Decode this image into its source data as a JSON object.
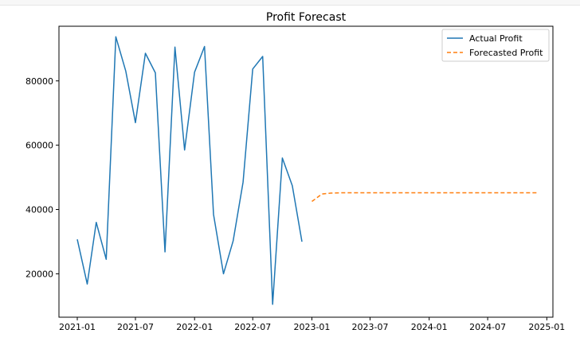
{
  "chart_data": {
    "type": "line",
    "title": "Profit Forecast",
    "xlabel": "",
    "ylabel": "",
    "x_axis": {
      "type": "date",
      "range": [
        "2020-11-05",
        "2025-01-20"
      ],
      "tick_labels": [
        "2021-01",
        "2021-07",
        "2022-01",
        "2022-07",
        "2023-01",
        "2023-07",
        "2024-01",
        "2024-07",
        "2025-01"
      ]
    },
    "y_axis": {
      "range": [
        6500,
        97000
      ],
      "ticks": [
        20000,
        40000,
        60000,
        80000
      ],
      "tick_labels": [
        "20000",
        "40000",
        "60000",
        "80000"
      ]
    },
    "grid": false,
    "legend": {
      "placement": "top-right"
    },
    "series": [
      {
        "name": "Actual Profit",
        "color": "#1f77b4",
        "style": "solid",
        "points": [
          {
            "x": "2021-01-01",
            "y": 30700
          },
          {
            "x": "2021-02-01",
            "y": 16800
          },
          {
            "x": "2021-03-01",
            "y": 36000
          },
          {
            "x": "2021-04-01",
            "y": 24500
          },
          {
            "x": "2021-05-01",
            "y": 93700
          },
          {
            "x": "2021-06-01",
            "y": 83000
          },
          {
            "x": "2021-07-01",
            "y": 67000
          },
          {
            "x": "2021-08-01",
            "y": 88600
          },
          {
            "x": "2021-09-01",
            "y": 82500
          },
          {
            "x": "2021-10-01",
            "y": 26800
          },
          {
            "x": "2021-11-01",
            "y": 90500
          },
          {
            "x": "2021-12-01",
            "y": 58500
          },
          {
            "x": "2022-01-01",
            "y": 82700
          },
          {
            "x": "2022-02-01",
            "y": 90700
          },
          {
            "x": "2022-03-01",
            "y": 38500
          },
          {
            "x": "2022-04-01",
            "y": 20000
          },
          {
            "x": "2022-05-01",
            "y": 30200
          },
          {
            "x": "2022-06-01",
            "y": 48500
          },
          {
            "x": "2022-07-01",
            "y": 83700
          },
          {
            "x": "2022-08-01",
            "y": 87600
          },
          {
            "x": "2022-09-01",
            "y": 10500
          },
          {
            "x": "2022-10-01",
            "y": 56000
          },
          {
            "x": "2022-11-01",
            "y": 47400
          },
          {
            "x": "2022-12-01",
            "y": 30000
          }
        ]
      },
      {
        "name": "Forecasted Profit",
        "color": "#ff7f0e",
        "style": "dashed",
        "points": [
          {
            "x": "2023-01-01",
            "y": 42500
          },
          {
            "x": "2023-02-01",
            "y": 44800
          },
          {
            "x": "2023-03-01",
            "y": 45100
          },
          {
            "x": "2023-04-01",
            "y": 45200
          },
          {
            "x": "2023-05-01",
            "y": 45200
          },
          {
            "x": "2023-06-01",
            "y": 45200
          },
          {
            "x": "2023-07-01",
            "y": 45200
          },
          {
            "x": "2023-08-01",
            "y": 45200
          },
          {
            "x": "2023-09-01",
            "y": 45200
          },
          {
            "x": "2023-10-01",
            "y": 45200
          },
          {
            "x": "2023-11-01",
            "y": 45200
          },
          {
            "x": "2023-12-01",
            "y": 45200
          },
          {
            "x": "2024-01-01",
            "y": 45200
          },
          {
            "x": "2024-02-01",
            "y": 45200
          },
          {
            "x": "2024-03-01",
            "y": 45200
          },
          {
            "x": "2024-04-01",
            "y": 45200
          },
          {
            "x": "2024-05-01",
            "y": 45200
          },
          {
            "x": "2024-06-01",
            "y": 45200
          },
          {
            "x": "2024-07-01",
            "y": 45200
          },
          {
            "x": "2024-08-01",
            "y": 45200
          },
          {
            "x": "2024-09-01",
            "y": 45200
          },
          {
            "x": "2024-10-01",
            "y": 45200
          },
          {
            "x": "2024-11-01",
            "y": 45200
          },
          {
            "x": "2024-12-01",
            "y": 45200
          }
        ]
      }
    ]
  }
}
